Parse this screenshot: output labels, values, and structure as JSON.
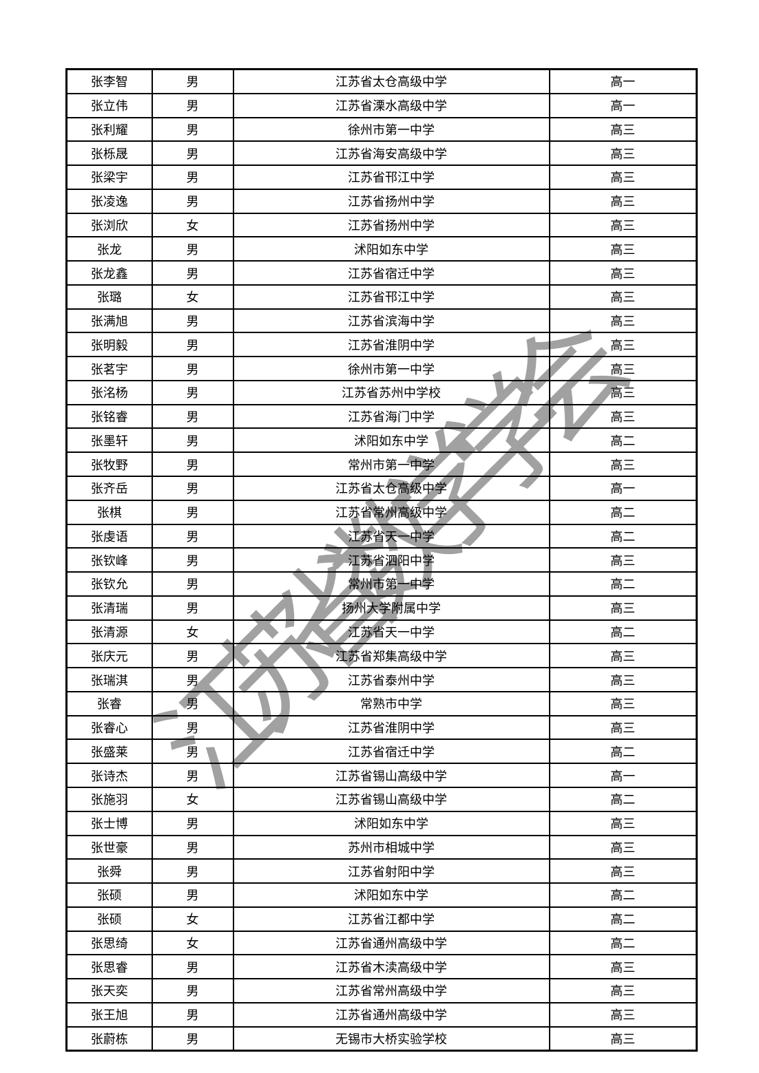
{
  "page": {
    "background_color": "#ffffff",
    "border_color": "#000000",
    "text_color": "#000000"
  },
  "watermark": {
    "text": "江苏省数学学会",
    "color": "#9a9a9a"
  },
  "table": {
    "rows": [
      {
        "name": "张李智",
        "gender": "男",
        "school": "江苏省太仓高级中学",
        "grade": "高一"
      },
      {
        "name": "张立伟",
        "gender": "男",
        "school": "江苏省溧水高级中学",
        "grade": "高一"
      },
      {
        "name": "张利耀",
        "gender": "男",
        "school": "徐州市第一中学",
        "grade": "高三"
      },
      {
        "name": "张栎晟",
        "gender": "男",
        "school": "江苏省海安高级中学",
        "grade": "高三"
      },
      {
        "name": "张梁宇",
        "gender": "男",
        "school": "江苏省邗江中学",
        "grade": "高三"
      },
      {
        "name": "张凌逸",
        "gender": "男",
        "school": "江苏省扬州中学",
        "grade": "高三"
      },
      {
        "name": "张浏欣",
        "gender": "女",
        "school": "江苏省扬州中学",
        "grade": "高三"
      },
      {
        "name": "张龙",
        "gender": "男",
        "school": "沭阳如东中学",
        "grade": "高三"
      },
      {
        "name": "张龙鑫",
        "gender": "男",
        "school": "江苏省宿迁中学",
        "grade": "高三"
      },
      {
        "name": "张璐",
        "gender": "女",
        "school": "江苏省邗江中学",
        "grade": "高三"
      },
      {
        "name": "张满旭",
        "gender": "男",
        "school": "江苏省滨海中学",
        "grade": "高三"
      },
      {
        "name": "张明毅",
        "gender": "男",
        "school": "江苏省淮阴中学",
        "grade": "高三"
      },
      {
        "name": "张茗宇",
        "gender": "男",
        "school": "徐州市第一中学",
        "grade": "高三"
      },
      {
        "name": "张洺杨",
        "gender": "男",
        "school": "江苏省苏州中学校",
        "grade": "高三"
      },
      {
        "name": "张铭睿",
        "gender": "男",
        "school": "江苏省海门中学",
        "grade": "高三"
      },
      {
        "name": "张墨轩",
        "gender": "男",
        "school": "沭阳如东中学",
        "grade": "高二"
      },
      {
        "name": "张牧野",
        "gender": "男",
        "school": "常州市第一中学",
        "grade": "高三"
      },
      {
        "name": "张齐岳",
        "gender": "男",
        "school": "江苏省太仓高级中学",
        "grade": "高一"
      },
      {
        "name": "张棋",
        "gender": "男",
        "school": "江苏省常州高级中学",
        "grade": "高二"
      },
      {
        "name": "张虔语",
        "gender": "男",
        "school": "江苏省天一中学",
        "grade": "高二"
      },
      {
        "name": "张钦峰",
        "gender": "男",
        "school": "江苏省泗阳中学",
        "grade": "高三"
      },
      {
        "name": "张钦允",
        "gender": "男",
        "school": "常州市第一中学",
        "grade": "高二"
      },
      {
        "name": "张清瑞",
        "gender": "男",
        "school": "扬州大学附属中学",
        "grade": "高三"
      },
      {
        "name": "张清源",
        "gender": "女",
        "school": "江苏省天一中学",
        "grade": "高二"
      },
      {
        "name": "张庆元",
        "gender": "男",
        "school": "江苏省郑集高级中学",
        "grade": "高三"
      },
      {
        "name": "张瑞淇",
        "gender": "男",
        "school": "江苏省泰州中学",
        "grade": "高三"
      },
      {
        "name": "张睿",
        "gender": "男",
        "school": "常熟市中学",
        "grade": "高三"
      },
      {
        "name": "张睿心",
        "gender": "男",
        "school": "江苏省淮阴中学",
        "grade": "高三"
      },
      {
        "name": "张盛莱",
        "gender": "男",
        "school": "江苏省宿迁中学",
        "grade": "高二"
      },
      {
        "name": "张诗杰",
        "gender": "男",
        "school": "江苏省锡山高级中学",
        "grade": "高一"
      },
      {
        "name": "张施羽",
        "gender": "女",
        "school": "江苏省锡山高级中学",
        "grade": "高二"
      },
      {
        "name": "张士博",
        "gender": "男",
        "school": "沭阳如东中学",
        "grade": "高三"
      },
      {
        "name": "张世豪",
        "gender": "男",
        "school": "苏州市相城中学",
        "grade": "高三"
      },
      {
        "name": "张舜",
        "gender": "男",
        "school": "江苏省射阳中学",
        "grade": "高三"
      },
      {
        "name": "张硕",
        "gender": "男",
        "school": "沭阳如东中学",
        "grade": "高二"
      },
      {
        "name": "张硕",
        "gender": "女",
        "school": "江苏省江都中学",
        "grade": "高二"
      },
      {
        "name": "张思绮",
        "gender": "女",
        "school": "江苏省通州高级中学",
        "grade": "高二"
      },
      {
        "name": "张思睿",
        "gender": "男",
        "school": "江苏省木渎高级中学",
        "grade": "高三"
      },
      {
        "name": "张天奕",
        "gender": "男",
        "school": "江苏省常州高级中学",
        "grade": "高三"
      },
      {
        "name": "张王旭",
        "gender": "男",
        "school": "江苏省通州高级中学",
        "grade": "高三"
      },
      {
        "name": "张蔚栋",
        "gender": "男",
        "school": "无锡市大桥实验学校",
        "grade": "高三"
      }
    ]
  }
}
